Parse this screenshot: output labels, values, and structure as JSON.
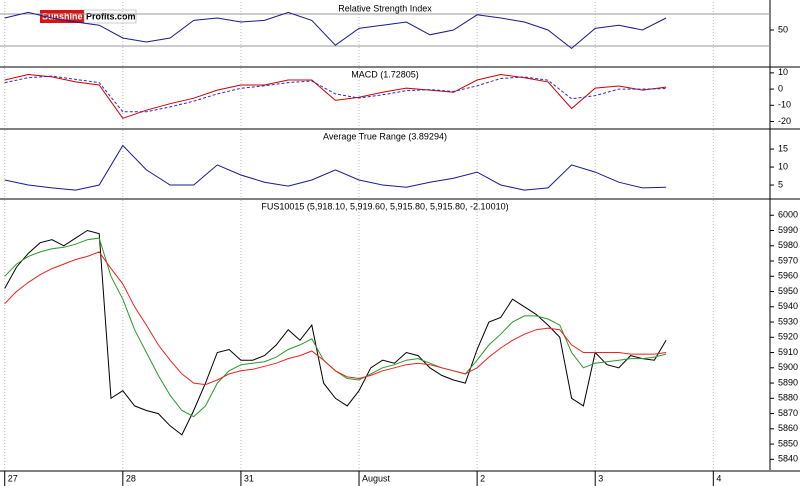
{
  "logo": {
    "part1": "Sunshine",
    "part2": "Profits.com"
  },
  "chart_data": [
    {
      "type": "line",
      "title": "Relative Strength Index",
      "x": [
        0,
        0.2,
        0.4,
        0.6,
        0.8,
        1.0,
        1.2,
        1.4,
        1.6,
        1.8,
        2.0,
        2.2,
        2.4,
        2.6,
        2.8,
        3.0,
        3.2,
        3.4,
        3.6,
        3.8,
        4.0,
        4.2,
        4.4,
        4.6,
        4.8,
        5.0,
        5.2,
        5.4,
        5.6
      ],
      "series": [
        {
          "color": "#1a1a8c",
          "values": [
            65,
            72,
            65,
            60,
            56,
            40,
            35,
            40,
            62,
            65,
            60,
            62,
            72,
            62,
            31,
            52,
            56,
            60,
            44,
            50,
            69,
            65,
            60,
            50,
            27,
            52,
            56,
            50,
            65
          ]
        }
      ],
      "ylim": [
        5,
        85
      ],
      "yticks": [
        50
      ],
      "reference_lines": [
        30,
        70
      ]
    },
    {
      "type": "line",
      "title": "MACD (1.72805)",
      "x": [
        0,
        0.2,
        0.4,
        0.6,
        0.8,
        1.0,
        1.2,
        1.4,
        1.6,
        1.8,
        2.0,
        2.2,
        2.4,
        2.6,
        2.8,
        3.0,
        3.2,
        3.4,
        3.6,
        3.8,
        4.0,
        4.2,
        4.4,
        4.6,
        4.8,
        5.0,
        5.2,
        5.4,
        5.6
      ],
      "series": [
        {
          "color": "#cc0000",
          "values": [
            5.6,
            9,
            7.5,
            4.4,
            2.5,
            -18,
            -13,
            -9,
            -5.6,
            -0.6,
            2.5,
            2.5,
            5.6,
            5.6,
            -7,
            -5,
            -2,
            0.6,
            -0.6,
            -2,
            5.6,
            9,
            7,
            4.4,
            -12,
            0.6,
            1.9,
            -0.6,
            1.2
          ]
        },
        {
          "color": "#2a2ad0",
          "dashed": true,
          "values": [
            4,
            7,
            8,
            6,
            4,
            -14,
            -14,
            -11,
            -7.5,
            -3,
            0.5,
            2,
            4,
            5,
            -3,
            -5.5,
            -3.5,
            -1,
            -0.3,
            -1.5,
            2,
            6.5,
            7.5,
            5.5,
            -6,
            -4,
            0,
            0,
            0.3
          ]
        }
      ],
      "ylim": [
        -24,
        13
      ],
      "yticks": [
        10,
        0,
        -10,
        -20
      ]
    },
    {
      "type": "line",
      "title": "Average True Range (3.89294)",
      "x": [
        0,
        0.2,
        0.4,
        0.6,
        0.8,
        1.0,
        1.2,
        1.4,
        1.6,
        1.8,
        2.0,
        2.2,
        2.4,
        2.6,
        2.8,
        3.0,
        3.2,
        3.4,
        3.6,
        3.8,
        4.0,
        4.2,
        4.4,
        4.6,
        4.8,
        5.0,
        5.2,
        5.4,
        5.6
      ],
      "series": [
        {
          "color": "#1a1a8c",
          "values": [
            6.4,
            5,
            4.2,
            3.6,
            5,
            16,
            9.2,
            5,
            5,
            10.6,
            7.8,
            5.8,
            4.7,
            6.4,
            9.2,
            6.4,
            5,
            4.4,
            5.8,
            6.9,
            8.6,
            5,
            3.6,
            4.2,
            10.6,
            8.6,
            5.8,
            4.2,
            4.4
          ]
        }
      ],
      "ylim": [
        1.4,
        20.3
      ],
      "yticks": [
        15,
        10,
        5
      ]
    },
    {
      "type": "line",
      "title": "FUS10015 (5,918.10, 5,919.60, 5,915.80, 5,915.80, -2.10010)",
      "x": [
        0,
        0.1,
        0.2,
        0.3,
        0.4,
        0.5,
        0.6,
        0.7,
        0.8,
        0.9,
        1.0,
        1.1,
        1.2,
        1.3,
        1.4,
        1.5,
        1.6,
        1.7,
        1.8,
        1.9,
        2.0,
        2.1,
        2.2,
        2.3,
        2.4,
        2.5,
        2.6,
        2.7,
        2.8,
        2.9,
        3.0,
        3.1,
        3.2,
        3.3,
        3.4,
        3.5,
        3.6,
        3.7,
        3.8,
        3.9,
        4.0,
        4.1,
        4.2,
        4.3,
        4.4,
        4.5,
        4.6,
        4.7,
        4.8,
        4.9,
        5.0,
        5.1,
        5.2,
        5.3,
        5.4,
        5.5,
        5.6
      ],
      "series": [
        {
          "color": "#000000",
          "values": [
            5952,
            5966,
            5975,
            5982,
            5984,
            5980,
            5985,
            5990,
            5988,
            5880,
            5885,
            5875,
            5872,
            5870,
            5862,
            5856,
            5872,
            5890,
            5910,
            5912,
            5905,
            5905,
            5908,
            5915,
            5925,
            5918,
            5928,
            5890,
            5880,
            5875,
            5885,
            5900,
            5905,
            5903,
            5910,
            5908,
            5900,
            5895,
            5892,
            5890,
            5912,
            5930,
            5933,
            5945,
            5940,
            5935,
            5928,
            5920,
            5880,
            5875,
            5910,
            5902,
            5900,
            5908,
            5906,
            5905,
            5918
          ]
        },
        {
          "color": "#2a9a2a",
          "values": [
            5960,
            5968,
            5973,
            5976,
            5978,
            5979,
            5981,
            5984,
            5985,
            5960,
            5945,
            5925,
            5910,
            5895,
            5882,
            5872,
            5868,
            5875,
            5890,
            5898,
            5902,
            5903,
            5904,
            5907,
            5912,
            5915,
            5919,
            5905,
            5898,
            5893,
            5892,
            5896,
            5900,
            5902,
            5905,
            5906,
            5903,
            5900,
            5898,
            5896,
            5905,
            5915,
            5922,
            5930,
            5934,
            5934,
            5932,
            5928,
            5910,
            5900,
            5903,
            5904,
            5905,
            5906,
            5906,
            5907,
            5909
          ]
        },
        {
          "color": "#ee2222",
          "values": [
            5942,
            5950,
            5956,
            5961,
            5965,
            5968,
            5971,
            5973,
            5976,
            5965,
            5955,
            5940,
            5928,
            5915,
            5905,
            5896,
            5890,
            5889,
            5892,
            5896,
            5898,
            5899,
            5901,
            5903,
            5906,
            5908,
            5911,
            5905,
            5898,
            5894,
            5893,
            5895,
            5898,
            5900,
            5902,
            5903,
            5902,
            5900,
            5898,
            5896,
            5900,
            5907,
            5913,
            5918,
            5922,
            5925,
            5926,
            5925,
            5915,
            5910,
            5910,
            5910,
            5910,
            5909,
            5909,
            5909,
            5910
          ]
        }
      ],
      "ylim": [
        5833,
        6010
      ],
      "yticks": [
        5840,
        5850,
        5860,
        5870,
        5880,
        5890,
        5900,
        5910,
        5920,
        5930,
        5940,
        5950,
        5960,
        5970,
        5980,
        5990,
        6000
      ],
      "xlim": [
        -0.04,
        6.48
      ],
      "xticks": [
        {
          "value": 0,
          "label": "27"
        },
        {
          "value": 1,
          "label": "28"
        },
        {
          "value": 2,
          "label": "31"
        },
        {
          "value": 3,
          "label": "August"
        },
        {
          "value": 4,
          "label": "2"
        },
        {
          "value": 5,
          "label": "3"
        },
        {
          "value": 6,
          "label": "4"
        }
      ]
    }
  ]
}
